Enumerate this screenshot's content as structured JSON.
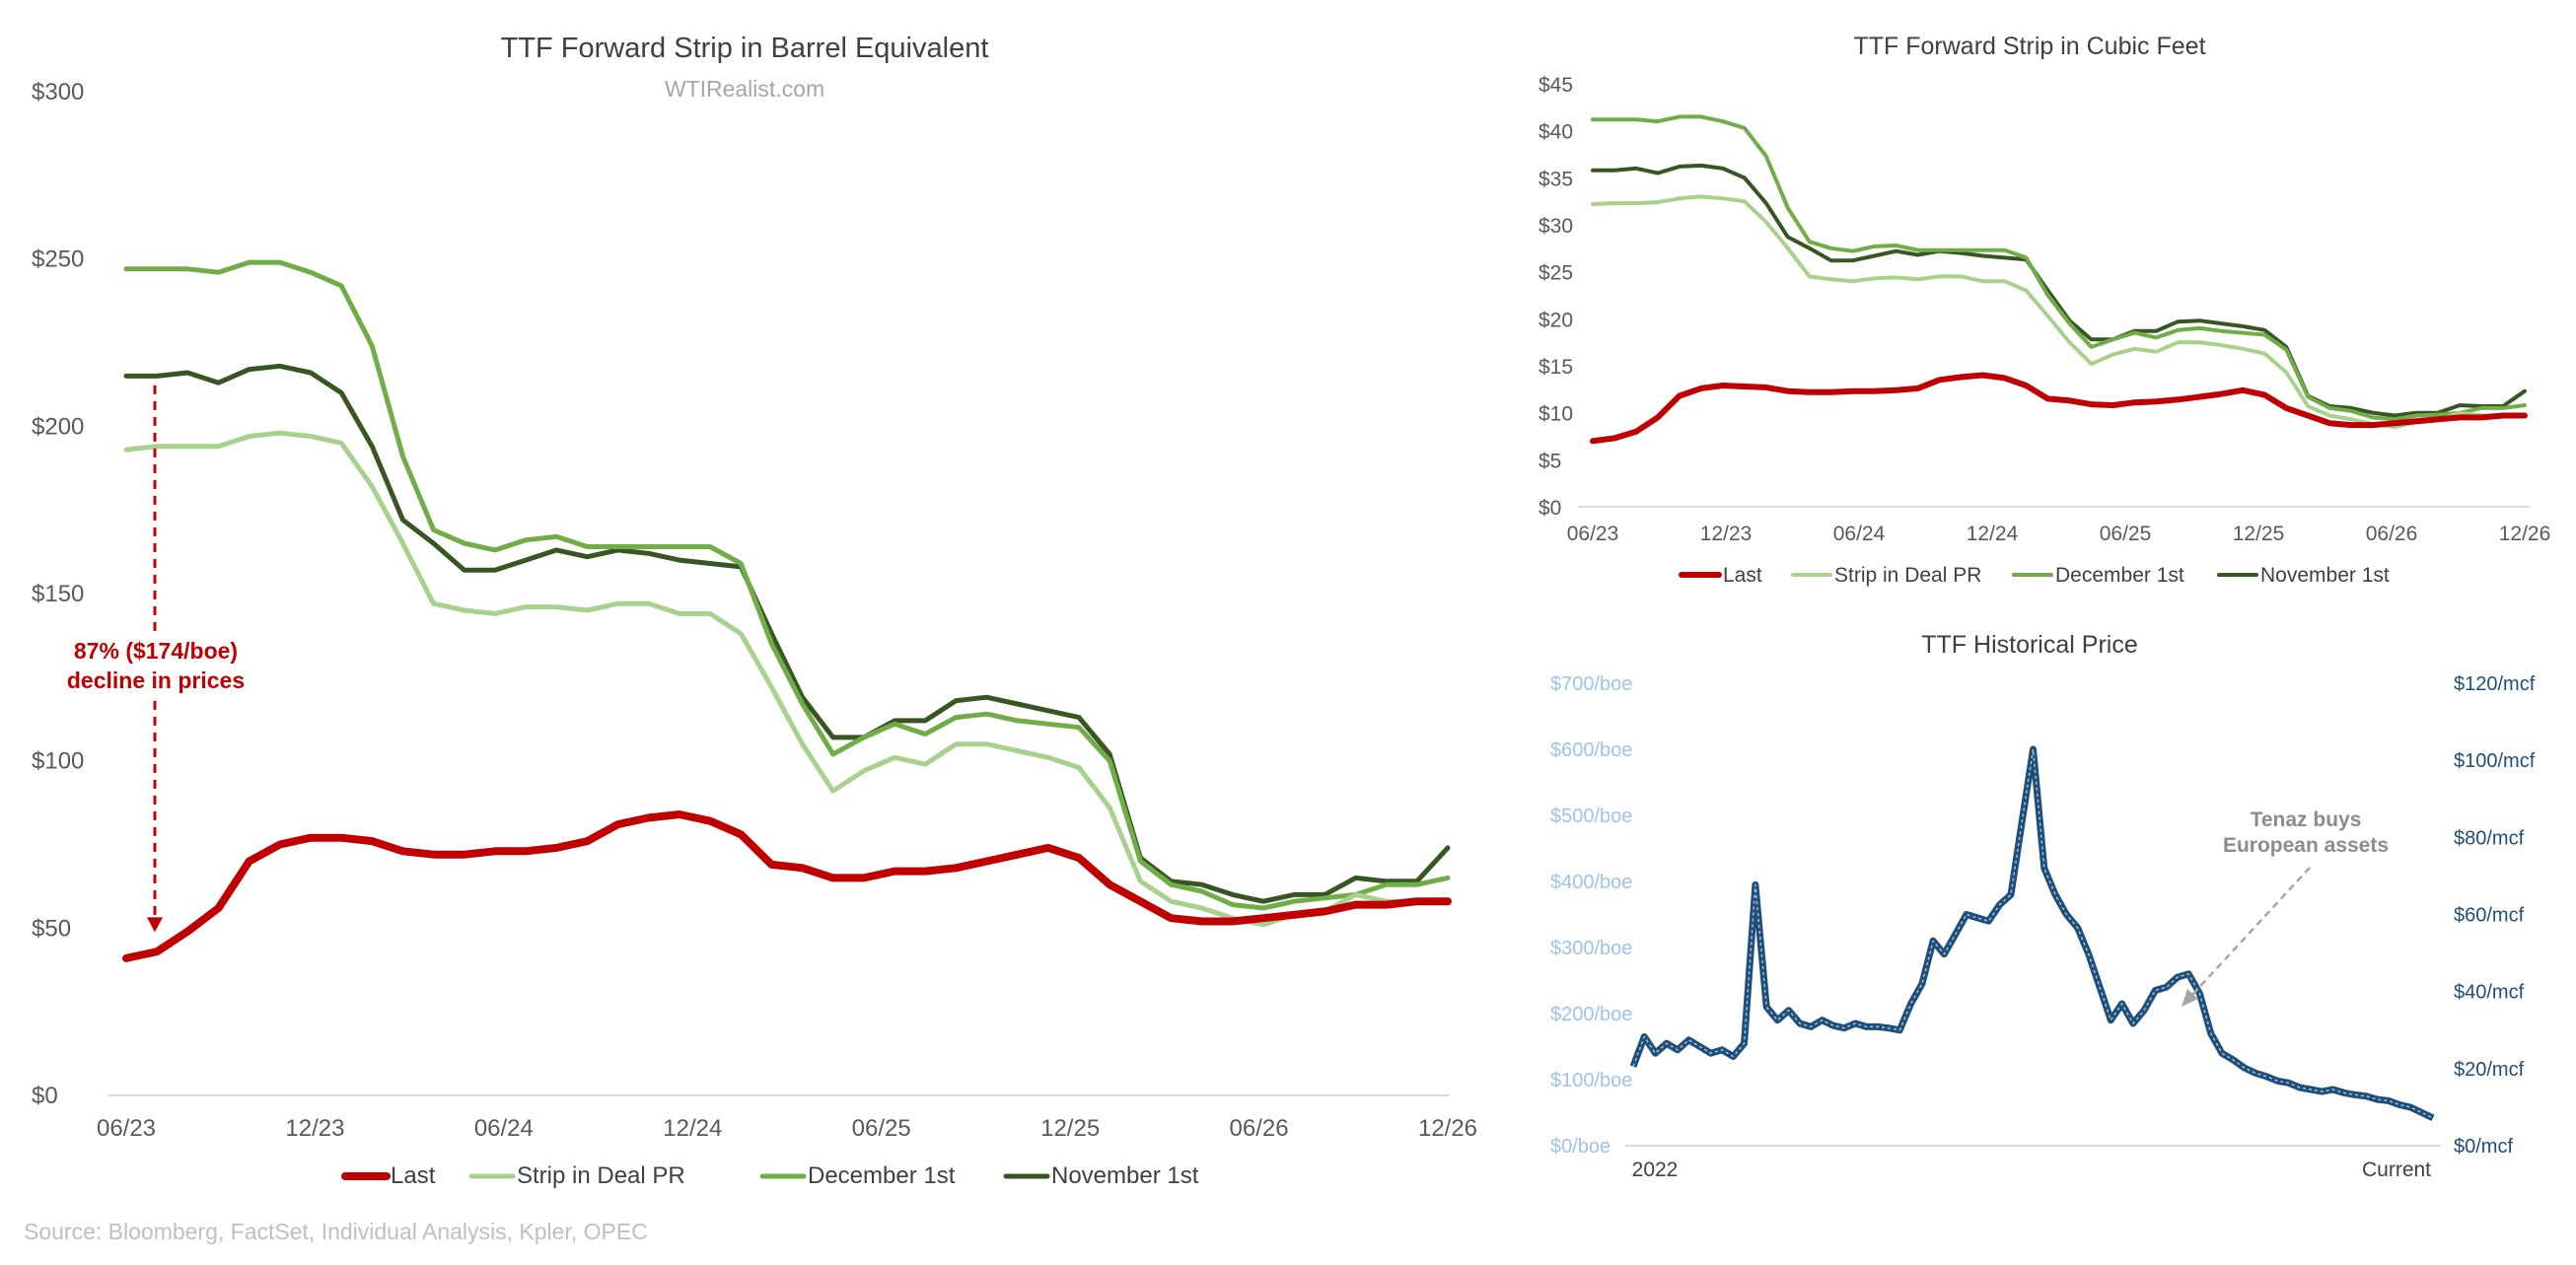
{
  "source": "Source: Bloomberg, FactSet, Individual Analysis, Kpler, OPEC",
  "colors": {
    "last": "#c00000",
    "strip": "#a9d18e",
    "dec1": "#70ad47",
    "nov1": "#375623",
    "hist": "#1f4e79",
    "hist_inner": "#9dc3e6"
  },
  "chart_data": [
    {
      "type": "line",
      "title": "TTF Forward Strip in Barrel Equivalent",
      "subtitle": "WTIRealist.com",
      "x_tick_labels": [
        "06/23",
        "12/23",
        "06/24",
        "12/24",
        "06/25",
        "12/25",
        "06/26",
        "12/26"
      ],
      "y_tick_labels": [
        "$0",
        "$50",
        "$100",
        "$150",
        "$200",
        "$250",
        "$300"
      ],
      "ylim": [
        0,
        300
      ],
      "legend_position": "bottom",
      "annotation": {
        "line1": "87% ($174/boe)",
        "line2": "decline in prices",
        "from_value": 214,
        "to_value": 50
      },
      "series": [
        {
          "name": "Last",
          "color_key": "last",
          "values": [
            41,
            43,
            49,
            56,
            70,
            75,
            77,
            77,
            76,
            73,
            72,
            72,
            73,
            73,
            74,
            76,
            81,
            83,
            84,
            82,
            78,
            69,
            68,
            65,
            65,
            67,
            67,
            68,
            70,
            72,
            74,
            71,
            63,
            58,
            53,
            52,
            52,
            53,
            54,
            55,
            57,
            57,
            58,
            58
          ]
        },
        {
          "name": "Strip in Deal PR",
          "color_key": "strip",
          "values": [
            193,
            194,
            194,
            194,
            197,
            198,
            197,
            195,
            182,
            165,
            147,
            145,
            144,
            146,
            146,
            145,
            147,
            147,
            144,
            144,
            138,
            122,
            105,
            91,
            97,
            101,
            99,
            105,
            105,
            103,
            101,
            98,
            86,
            64,
            58,
            56,
            53,
            51,
            54,
            55,
            60,
            58,
            58,
            58
          ]
        },
        {
          "name": "December 1st",
          "color_key": "dec1",
          "values": [
            247,
            247,
            247,
            246,
            249,
            249,
            246,
            242,
            224,
            191,
            169,
            165,
            163,
            166,
            167,
            164,
            164,
            164,
            164,
            164,
            159,
            135,
            117,
            102,
            107,
            111,
            108,
            113,
            114,
            112,
            111,
            110,
            100,
            70,
            63,
            61,
            57,
            56,
            58,
            59,
            60,
            63,
            63,
            65
          ]
        },
        {
          "name": "November 1st",
          "color_key": "nov1",
          "values": [
            215,
            215,
            216,
            213,
            217,
            218,
            216,
            210,
            194,
            172,
            165,
            157,
            157,
            160,
            163,
            161,
            163,
            162,
            160,
            159,
            158,
            138,
            119,
            107,
            107,
            112,
            112,
            118,
            119,
            117,
            115,
            113,
            102,
            71,
            64,
            63,
            60,
            58,
            60,
            60,
            65,
            64,
            64,
            74
          ]
        }
      ]
    },
    {
      "type": "line",
      "title": "TTF Forward Strip in Cubic Feet",
      "x_tick_labels": [
        "06/23",
        "12/23",
        "06/24",
        "12/24",
        "06/25",
        "12/25",
        "06/26",
        "12/26"
      ],
      "y_tick_labels": [
        "$0",
        "$5",
        "$10",
        "$15",
        "$20",
        "$25",
        "$30",
        "$35",
        "$40",
        "$45"
      ],
      "ylim": [
        0,
        45
      ],
      "legend_position": "bottom",
      "series": [
        {
          "name": "Last",
          "color_key": "last",
          "values": [
            7,
            7.3,
            8,
            9.5,
            11.8,
            12.6,
            12.9,
            12.8,
            12.7,
            12.3,
            12.2,
            12.2,
            12.3,
            12.3,
            12.4,
            12.6,
            13.5,
            13.8,
            14,
            13.7,
            12.9,
            11.5,
            11.3,
            10.9,
            10.8,
            11.1,
            11.2,
            11.4,
            11.7,
            12,
            12.4,
            11.9,
            10.5,
            9.7,
            8.9,
            8.7,
            8.7,
            8.9,
            9.1,
            9.3,
            9.5,
            9.5,
            9.7,
            9.7
          ]
        },
        {
          "name": "Strip in Deal PR",
          "color_key": "strip",
          "values": [
            32.2,
            32.3,
            32.3,
            32.4,
            32.8,
            33,
            32.8,
            32.5,
            30.3,
            27.5,
            24.5,
            24.2,
            24,
            24.3,
            24.4,
            24.2,
            24.5,
            24.5,
            24,
            24,
            23,
            20.3,
            17.5,
            15.2,
            16.2,
            16.8,
            16.5,
            17.5,
            17.5,
            17.2,
            16.8,
            16.3,
            14.3,
            10.7,
            9.7,
            9.3,
            8.8,
            8.5,
            9,
            9.2,
            10,
            9.7,
            9.7,
            9.7
          ]
        },
        {
          "name": "December 1st",
          "color_key": "dec1",
          "values": [
            41.2,
            41.2,
            41.2,
            41,
            41.5,
            41.5,
            41,
            40.3,
            37.3,
            31.8,
            28.2,
            27.5,
            27.2,
            27.7,
            27.8,
            27.3,
            27.3,
            27.3,
            27.3,
            27.3,
            26.5,
            22.5,
            19.5,
            17,
            17.8,
            18.5,
            18,
            18.8,
            19,
            18.7,
            18.5,
            18.3,
            16.7,
            11.7,
            10.5,
            10.2,
            9.5,
            9.3,
            9.7,
            9.8,
            10,
            10.5,
            10.5,
            10.8
          ]
        },
        {
          "name": "November 1st",
          "color_key": "nov1",
          "values": [
            35.8,
            35.8,
            36,
            35.5,
            36.2,
            36.3,
            36,
            35,
            32.3,
            28.7,
            27.5,
            26.2,
            26.2,
            26.7,
            27.2,
            26.8,
            27.2,
            27,
            26.7,
            26.5,
            26.3,
            23,
            19.8,
            17.8,
            17.8,
            18.7,
            18.7,
            19.7,
            19.8,
            19.5,
            19.2,
            18.8,
            17,
            11.8,
            10.7,
            10.5,
            10,
            9.7,
            10,
            10,
            10.8,
            10.7,
            10.7,
            12.3
          ]
        }
      ]
    },
    {
      "type": "line",
      "title": "TTF Historical Price",
      "x_tick_labels": [
        "2022",
        "Current"
      ],
      "y_left_tick_labels": [
        "$0/boe",
        "$100/boe",
        "$200/boe",
        "$300/boe",
        "$400/boe",
        "$500/boe",
        "$600/boe",
        "$700/boe"
      ],
      "y_right_tick_labels": [
        "$0/mcf",
        "$20/mcf",
        "$40/mcf",
        "$60/mcf",
        "$80/mcf",
        "$100/mcf",
        "$120/mcf"
      ],
      "ylim_left": [
        0,
        700
      ],
      "ylim_right": [
        0,
        120
      ],
      "annotation": {
        "line1": "Tenaz buys",
        "line2": "European assets",
        "points_to_index": 51
      },
      "series": [
        {
          "name": "TTF",
          "color_key": "hist",
          "values_boe": [
            120,
            165,
            140,
            155,
            145,
            160,
            150,
            140,
            145,
            135,
            155,
            395,
            210,
            190,
            205,
            185,
            180,
            190,
            182,
            178,
            185,
            180,
            180,
            178,
            175,
            215,
            245,
            310,
            290,
            320,
            350,
            345,
            340,
            365,
            380,
            490,
            600,
            420,
            380,
            350,
            330,
            290,
            240,
            190,
            215,
            185,
            205,
            235,
            240,
            255,
            260,
            230,
            170,
            140,
            130,
            118,
            110,
            105,
            98,
            95,
            88,
            85,
            82,
            85,
            80,
            77,
            75,
            70,
            68,
            62,
            58,
            50,
            42
          ]
        }
      ]
    }
  ]
}
